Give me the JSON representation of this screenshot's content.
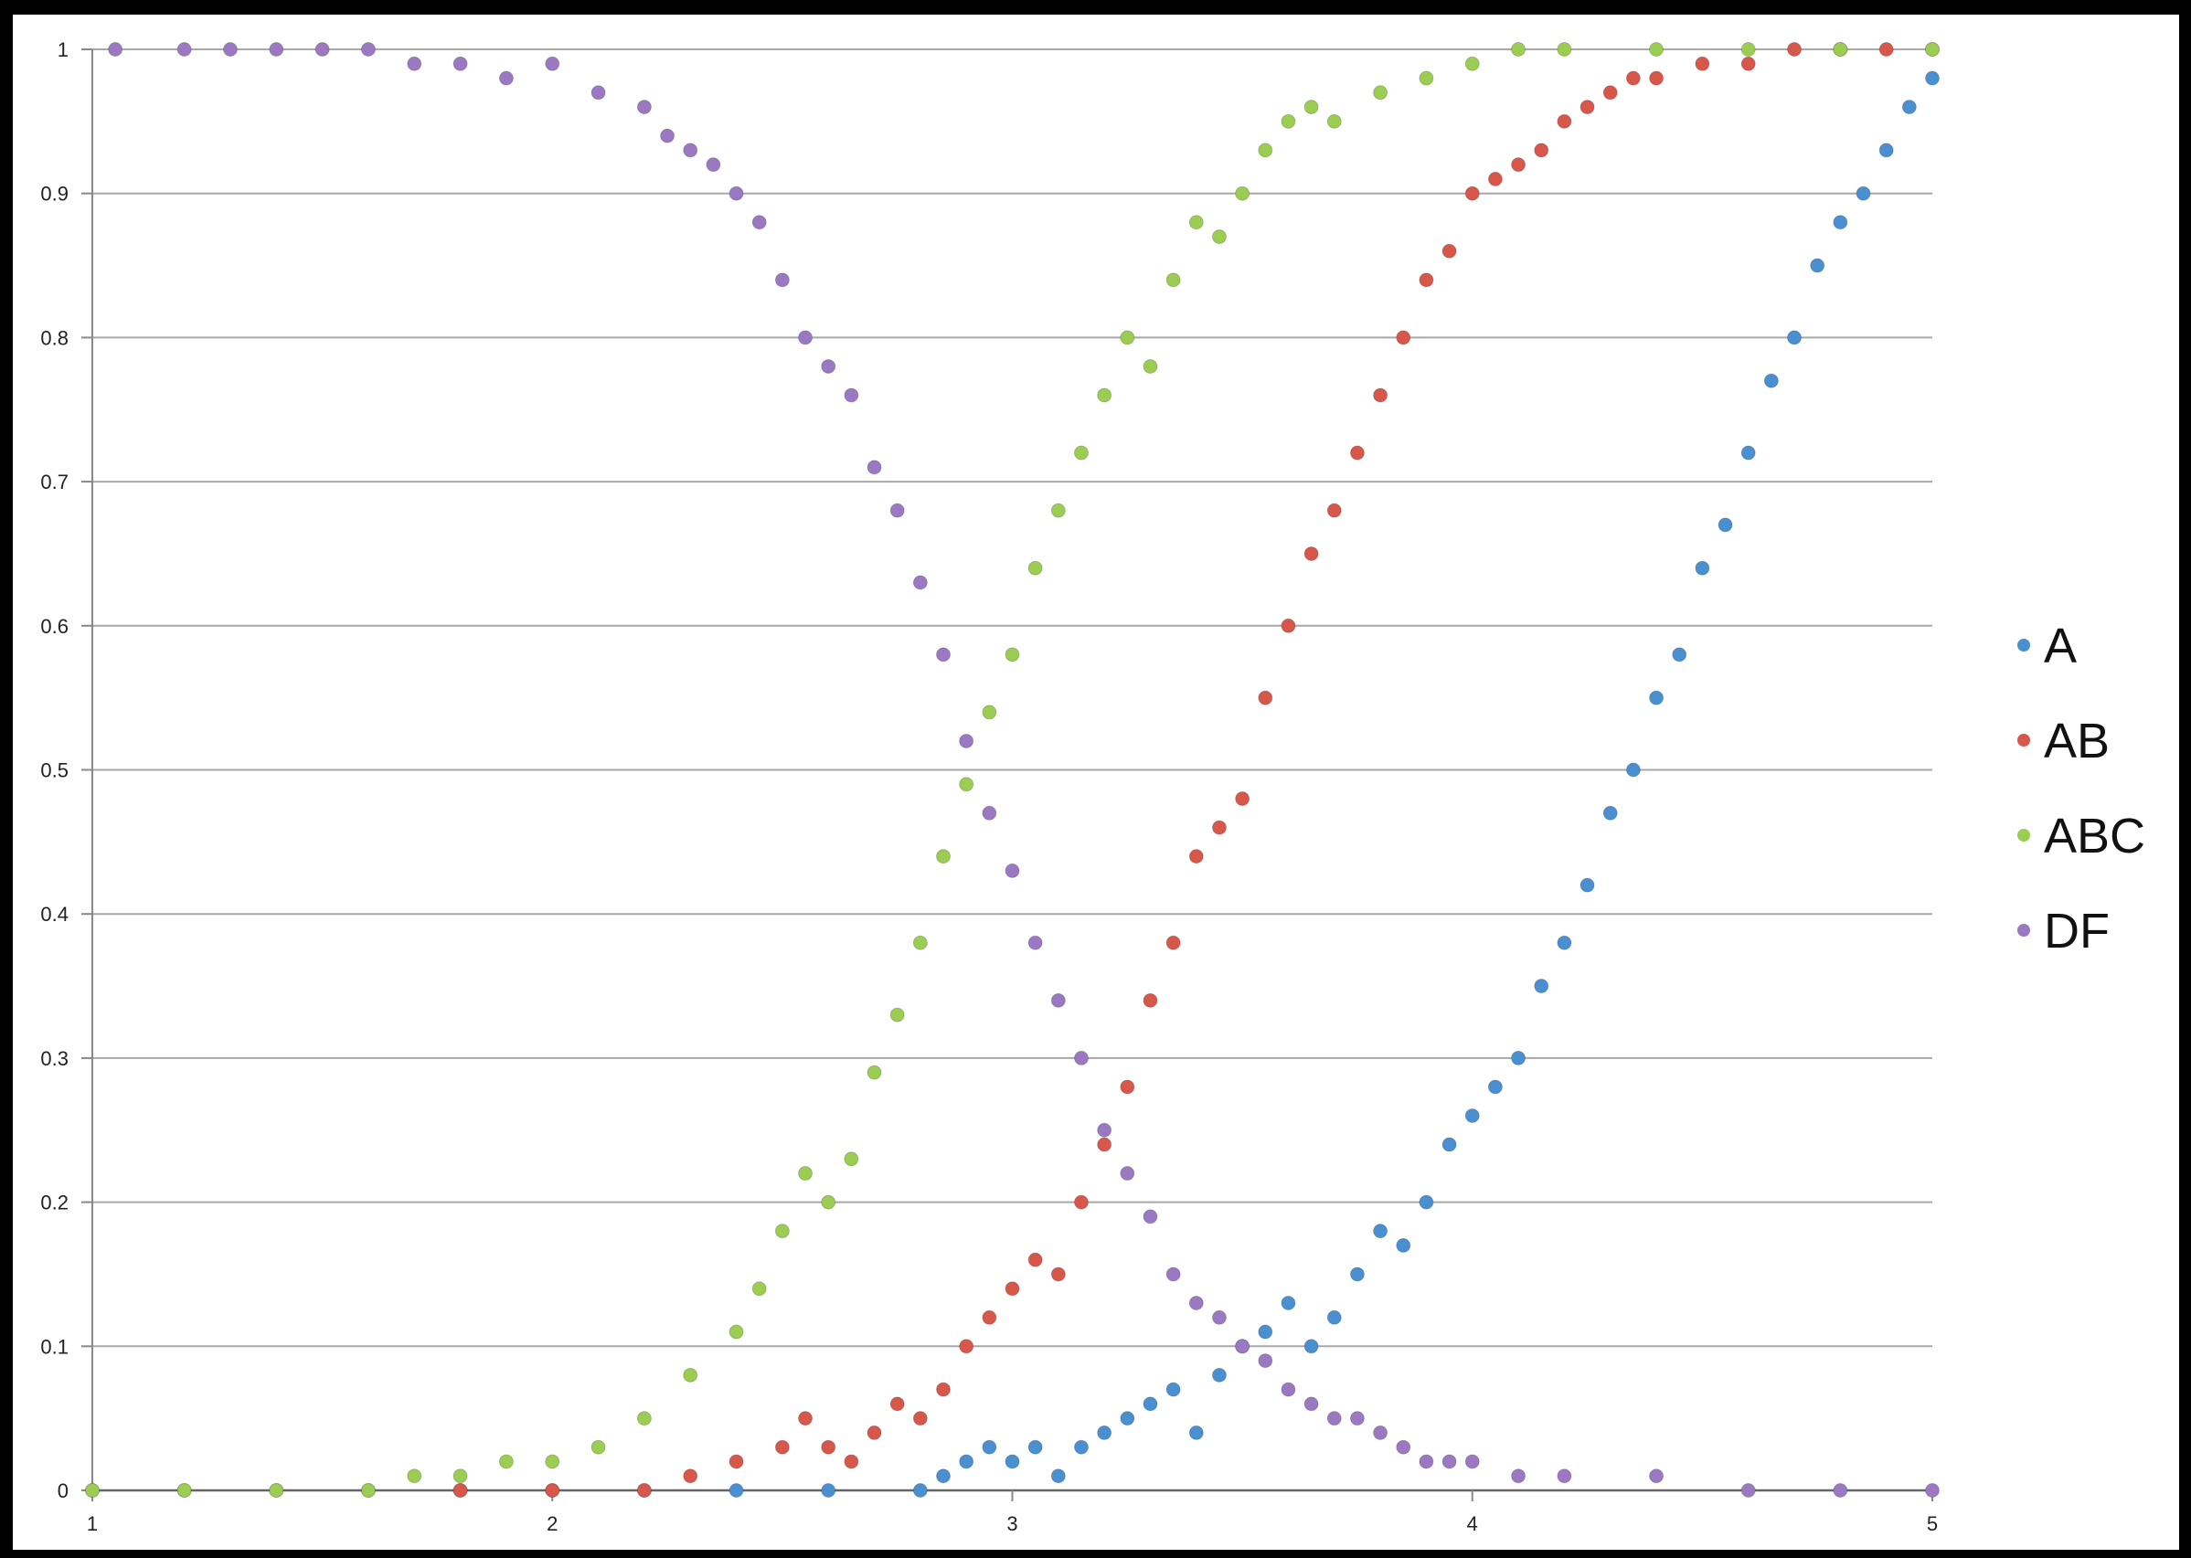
{
  "chart_data": {
    "type": "scatter",
    "title": "",
    "xlabel": "",
    "ylabel": "",
    "xlim": [
      1,
      5
    ],
    "ylim": [
      0,
      1
    ],
    "x_ticks": [
      "1",
      "2",
      "3",
      "4",
      "5"
    ],
    "y_ticks": [
      "0",
      "0.1",
      "0.2",
      "0.3",
      "0.4",
      "0.5",
      "0.6",
      "0.7",
      "0.8",
      "0.9",
      "1"
    ],
    "grid": "horizontal",
    "legend": "right",
    "series": [
      {
        "name": "A",
        "color": "#4a90d0",
        "points": [
          [
            1.0,
            0
          ],
          [
            1.2,
            0
          ],
          [
            1.4,
            0
          ],
          [
            1.6,
            0
          ],
          [
            1.8,
            0
          ],
          [
            2.0,
            0
          ],
          [
            2.2,
            0
          ],
          [
            2.4,
            0
          ],
          [
            2.6,
            0
          ],
          [
            2.8,
            0
          ],
          [
            2.85,
            0.01
          ],
          [
            2.9,
            0.02
          ],
          [
            2.95,
            0.03
          ],
          [
            3.0,
            0.02
          ],
          [
            3.05,
            0.03
          ],
          [
            3.1,
            0.01
          ],
          [
            3.15,
            0.03
          ],
          [
            3.2,
            0.04
          ],
          [
            3.25,
            0.05
          ],
          [
            3.3,
            0.06
          ],
          [
            3.35,
            0.07
          ],
          [
            3.4,
            0.04
          ],
          [
            3.45,
            0.08
          ],
          [
            3.5,
            0.1
          ],
          [
            3.55,
            0.11
          ],
          [
            3.6,
            0.13
          ],
          [
            3.65,
            0.1
          ],
          [
            3.7,
            0.12
          ],
          [
            3.75,
            0.15
          ],
          [
            3.8,
            0.18
          ],
          [
            3.85,
            0.17
          ],
          [
            3.9,
            0.2
          ],
          [
            3.95,
            0.24
          ],
          [
            4.0,
            0.26
          ],
          [
            4.05,
            0.28
          ],
          [
            4.1,
            0.3
          ],
          [
            4.15,
            0.35
          ],
          [
            4.2,
            0.38
          ],
          [
            4.25,
            0.42
          ],
          [
            4.3,
            0.47
          ],
          [
            4.35,
            0.5
          ],
          [
            4.4,
            0.55
          ],
          [
            4.45,
            0.58
          ],
          [
            4.5,
            0.64
          ],
          [
            4.55,
            0.67
          ],
          [
            4.6,
            0.72
          ],
          [
            4.65,
            0.77
          ],
          [
            4.7,
            0.8
          ],
          [
            4.75,
            0.85
          ],
          [
            4.8,
            0.88
          ],
          [
            4.85,
            0.9
          ],
          [
            4.9,
            0.93
          ],
          [
            4.95,
            0.96
          ],
          [
            5.0,
            0.98
          ]
        ]
      },
      {
        "name": "AB",
        "color": "#d8574b",
        "points": [
          [
            1.8,
            0
          ],
          [
            2.0,
            0
          ],
          [
            2.2,
            0
          ],
          [
            2.3,
            0.01
          ],
          [
            2.4,
            0.02
          ],
          [
            2.5,
            0.03
          ],
          [
            2.55,
            0.05
          ],
          [
            2.6,
            0.03
          ],
          [
            2.65,
            0.02
          ],
          [
            2.7,
            0.04
          ],
          [
            2.75,
            0.06
          ],
          [
            2.8,
            0.05
          ],
          [
            2.85,
            0.07
          ],
          [
            2.9,
            0.1
          ],
          [
            2.95,
            0.12
          ],
          [
            3.0,
            0.14
          ],
          [
            3.05,
            0.16
          ],
          [
            3.1,
            0.15
          ],
          [
            3.15,
            0.2
          ],
          [
            3.2,
            0.24
          ],
          [
            3.25,
            0.28
          ],
          [
            3.3,
            0.34
          ],
          [
            3.35,
            0.38
          ],
          [
            3.4,
            0.44
          ],
          [
            3.45,
            0.46
          ],
          [
            3.5,
            0.48
          ],
          [
            3.55,
            0.55
          ],
          [
            3.6,
            0.6
          ],
          [
            3.65,
            0.65
          ],
          [
            3.7,
            0.68
          ],
          [
            3.75,
            0.72
          ],
          [
            3.8,
            0.76
          ],
          [
            3.85,
            0.8
          ],
          [
            3.9,
            0.84
          ],
          [
            3.95,
            0.86
          ],
          [
            4.0,
            0.9
          ],
          [
            4.05,
            0.91
          ],
          [
            4.1,
            0.92
          ],
          [
            4.15,
            0.93
          ],
          [
            4.2,
            0.95
          ],
          [
            4.25,
            0.96
          ],
          [
            4.3,
            0.97
          ],
          [
            4.35,
            0.98
          ],
          [
            4.4,
            0.98
          ],
          [
            4.5,
            0.99
          ],
          [
            4.6,
            0.99
          ],
          [
            4.7,
            1.0
          ],
          [
            4.8,
            1.0
          ],
          [
            4.9,
            1.0
          ],
          [
            5.0,
            1.0
          ]
        ]
      },
      {
        "name": "ABC",
        "color": "#9acd52",
        "points": [
          [
            1.0,
            0
          ],
          [
            1.2,
            0
          ],
          [
            1.4,
            0
          ],
          [
            1.6,
            0
          ],
          [
            1.7,
            0.01
          ],
          [
            1.8,
            0.01
          ],
          [
            1.9,
            0.02
          ],
          [
            2.0,
            0.02
          ],
          [
            2.1,
            0.03
          ],
          [
            2.2,
            0.05
          ],
          [
            2.3,
            0.08
          ],
          [
            2.4,
            0.11
          ],
          [
            2.45,
            0.14
          ],
          [
            2.5,
            0.18
          ],
          [
            2.55,
            0.22
          ],
          [
            2.6,
            0.2
          ],
          [
            2.65,
            0.23
          ],
          [
            2.7,
            0.29
          ],
          [
            2.75,
            0.33
          ],
          [
            2.8,
            0.38
          ],
          [
            2.85,
            0.44
          ],
          [
            2.9,
            0.49
          ],
          [
            2.95,
            0.54
          ],
          [
            3.0,
            0.58
          ],
          [
            3.05,
            0.64
          ],
          [
            3.1,
            0.68
          ],
          [
            3.15,
            0.72
          ],
          [
            3.2,
            0.76
          ],
          [
            3.25,
            0.8
          ],
          [
            3.3,
            0.78
          ],
          [
            3.35,
            0.84
          ],
          [
            3.4,
            0.88
          ],
          [
            3.45,
            0.87
          ],
          [
            3.5,
            0.9
          ],
          [
            3.55,
            0.93
          ],
          [
            3.6,
            0.95
          ],
          [
            3.65,
            0.96
          ],
          [
            3.7,
            0.95
          ],
          [
            3.8,
            0.97
          ],
          [
            3.9,
            0.98
          ],
          [
            4.0,
            0.99
          ],
          [
            4.1,
            1.0
          ],
          [
            4.2,
            1.0
          ],
          [
            4.4,
            1.0
          ],
          [
            4.6,
            1.0
          ],
          [
            4.8,
            1.0
          ],
          [
            5.0,
            1.0
          ]
        ]
      },
      {
        "name": "DF",
        "color": "#9b79c2",
        "points": [
          [
            1.05,
            1.0
          ],
          [
            1.2,
            1.0
          ],
          [
            1.3,
            1.0
          ],
          [
            1.4,
            1.0
          ],
          [
            1.5,
            1.0
          ],
          [
            1.6,
            1.0
          ],
          [
            1.7,
            0.99
          ],
          [
            1.8,
            0.99
          ],
          [
            1.9,
            0.98
          ],
          [
            2.0,
            0.99
          ],
          [
            2.1,
            0.97
          ],
          [
            2.2,
            0.96
          ],
          [
            2.25,
            0.94
          ],
          [
            2.3,
            0.93
          ],
          [
            2.35,
            0.92
          ],
          [
            2.4,
            0.9
          ],
          [
            2.45,
            0.88
          ],
          [
            2.5,
            0.84
          ],
          [
            2.55,
            0.8
          ],
          [
            2.6,
            0.78
          ],
          [
            2.65,
            0.76
          ],
          [
            2.7,
            0.71
          ],
          [
            2.75,
            0.68
          ],
          [
            2.8,
            0.63
          ],
          [
            2.85,
            0.58
          ],
          [
            2.9,
            0.52
          ],
          [
            2.95,
            0.47
          ],
          [
            3.0,
            0.43
          ],
          [
            3.05,
            0.38
          ],
          [
            3.1,
            0.34
          ],
          [
            3.15,
            0.3
          ],
          [
            3.2,
            0.25
          ],
          [
            3.25,
            0.22
          ],
          [
            3.3,
            0.19
          ],
          [
            3.35,
            0.15
          ],
          [
            3.4,
            0.13
          ],
          [
            3.45,
            0.12
          ],
          [
            3.5,
            0.1
          ],
          [
            3.55,
            0.09
          ],
          [
            3.6,
            0.07
          ],
          [
            3.65,
            0.06
          ],
          [
            3.7,
            0.05
          ],
          [
            3.75,
            0.05
          ],
          [
            3.8,
            0.04
          ],
          [
            3.85,
            0.03
          ],
          [
            3.9,
            0.02
          ],
          [
            3.95,
            0.02
          ],
          [
            4.0,
            0.02
          ],
          [
            4.1,
            0.01
          ],
          [
            4.2,
            0.01
          ],
          [
            4.4,
            0.01
          ],
          [
            4.6,
            0
          ],
          [
            4.8,
            0
          ],
          [
            5.0,
            0
          ]
        ]
      }
    ]
  }
}
